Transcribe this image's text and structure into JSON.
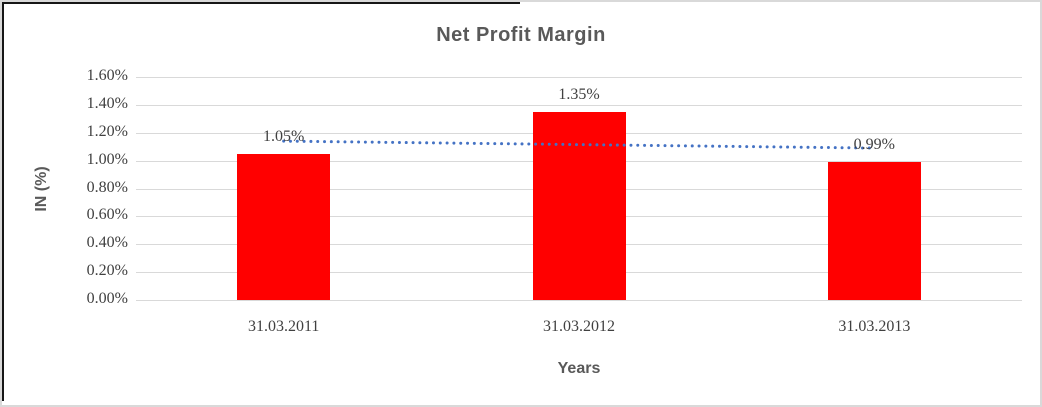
{
  "chart_data": {
    "type": "bar",
    "title": "Net Profit Margin",
    "xlabel": "Years",
    "ylabel": "IN (%)",
    "categories": [
      "31.03.2011",
      "31.03.2012",
      "31.03.2013"
    ],
    "values": [
      1.05,
      1.35,
      0.99
    ],
    "data_labels": [
      "1.05%",
      "1.35%",
      "0.99%"
    ],
    "ylim": [
      0,
      1.6
    ],
    "ytick_step": 0.2,
    "ytick_labels": [
      "0.00%",
      "0.20%",
      "0.40%",
      "0.60%",
      "0.80%",
      "1.00%",
      "1.20%",
      "1.40%",
      "1.60%"
    ],
    "grid": true,
    "legend": "none",
    "bar_color": "#FF0000",
    "gridline_color": "#D9D9D9",
    "tick_text_color": "#404040",
    "title_color": "#595959",
    "trendline": {
      "type": "linear",
      "style": "dotted",
      "color": "#4472C4",
      "start_value": 1.14,
      "end_value": 1.09
    }
  }
}
